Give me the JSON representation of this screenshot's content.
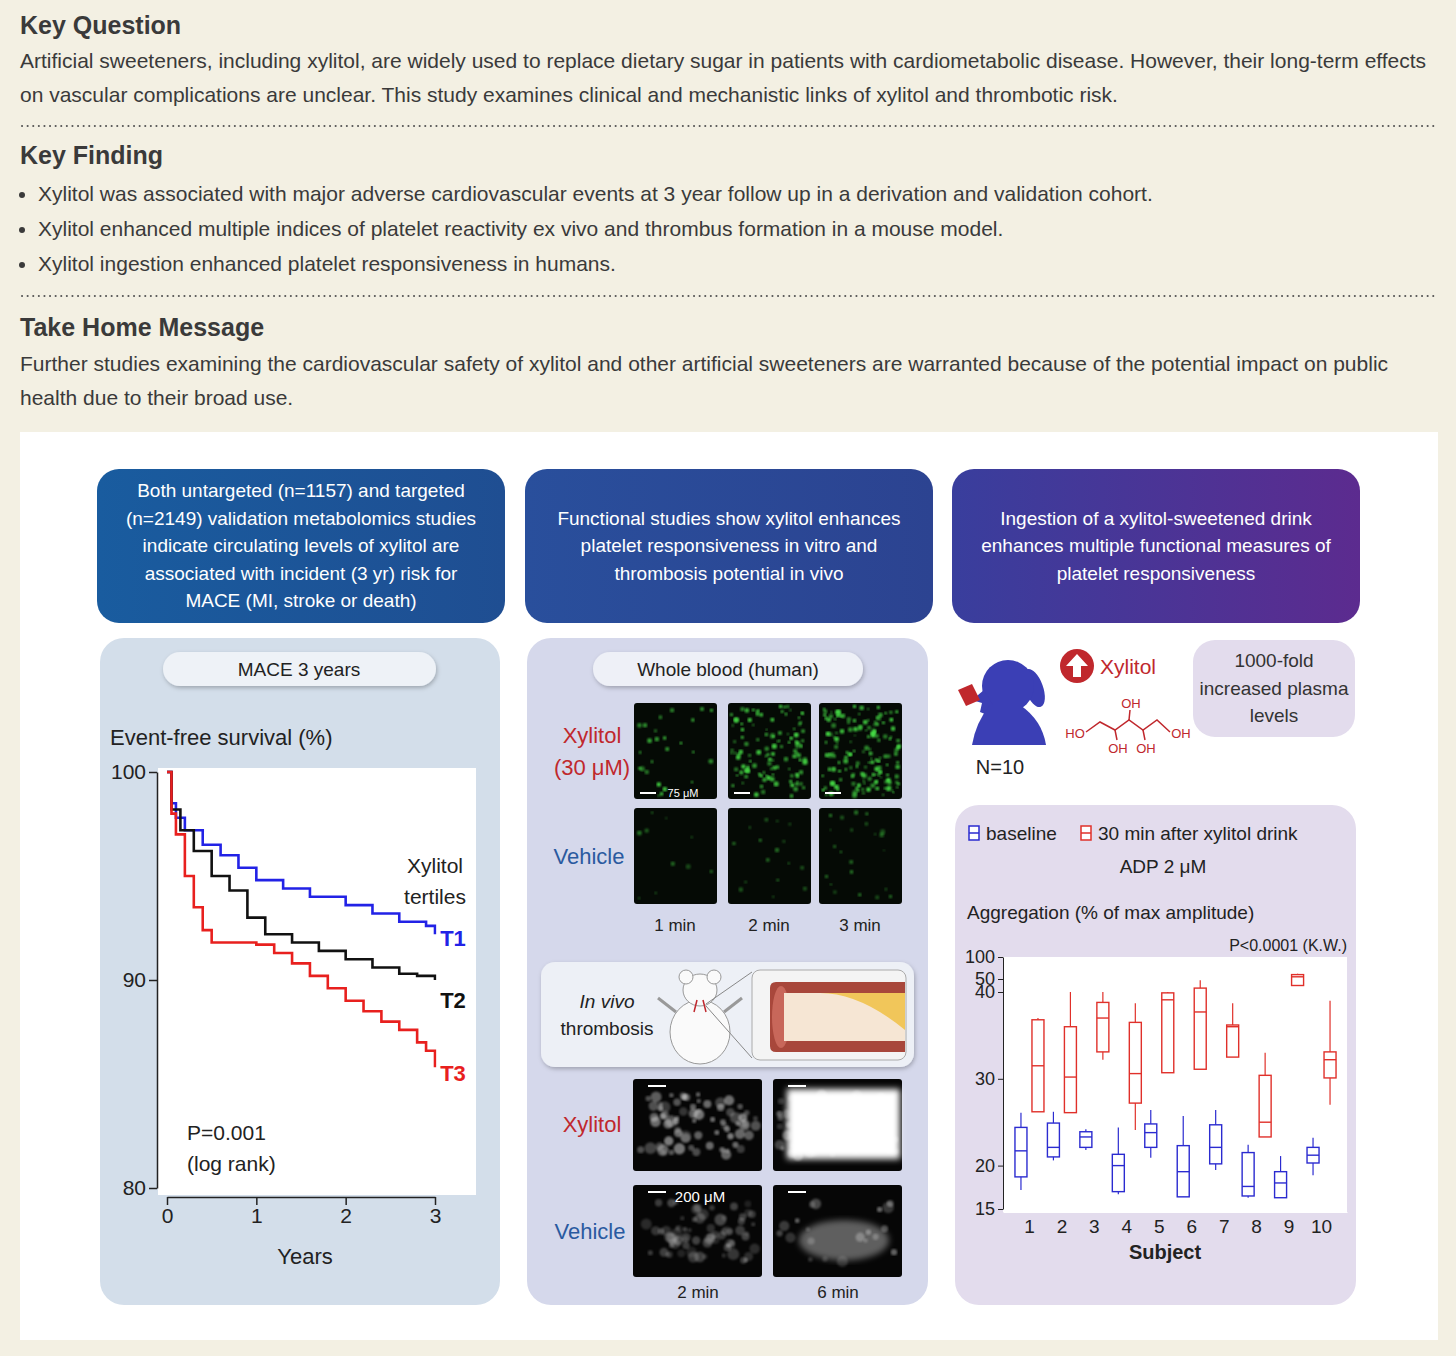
{
  "header": {
    "sections": [
      {
        "heading": "Key Question",
        "text": "Artificial sweeteners, including xylitol, are widely used to replace dietary sugar in patients with cardiometabolic disease. However, their long-term effects on vascular complications are unclear. This study examines clinical and mechanistic links of xylitol and thrombotic risk."
      },
      {
        "heading": "Key Finding",
        "items": [
          "Xylitol was associated with major adverse cardiovascular events at 3 year follow up in a derivation and validation cohort.",
          "Xylitol enhanced multiple indices of platelet reactivity ex vivo and thrombus formation in a mouse model.",
          "Xylitol ingestion enhanced platelet responsiveness in humans."
        ]
      },
      {
        "heading": "Take Home Message",
        "text": "Further studies examining the cardiovascular safety of xylitol and other artificial sweeteners are warranted because of the potential impact on public health due to their broad use."
      }
    ]
  },
  "panels": [
    {
      "header": "Both untargeted (n=1157) and targeted (n=2149) validation metabolomics studies indicate circulating levels of xylitol are associated with incident (3 yr) risk for MACE (MI, stroke or death)"
    },
    {
      "header": "Functional studies show xylitol enhances platelet responsiveness in vitro and thrombosis potential in vivo",
      "label": "Whole blood (human)",
      "whole_blood": {
        "rows": [
          [
            "Xylitol",
            "(30 μM)"
          ],
          [
            "Vehicle"
          ]
        ],
        "scale_bar": "75 μM",
        "times": [
          "1 min",
          "2 min",
          "3 min"
        ]
      },
      "in_vivo_label": [
        "In vivo",
        "thrombosis"
      ],
      "in_vivo": {
        "rows": [
          [
            "Xylitol"
          ],
          [
            "Vehicle"
          ]
        ],
        "scale_bar": "200 μM",
        "times": [
          "2 min",
          "6 min"
        ]
      }
    },
    {
      "header": "Ingestion of a xylitol-sweetened drink enhances multiple functional measures of platelet responsiveness",
      "marker": "Xylitol",
      "structure_labels": [
        "HO",
        "OH",
        "OH",
        "OH",
        "OH"
      ],
      "note": "1000-fold increased plasma levels",
      "n": "N=10"
    }
  ],
  "chart_data": [
    {
      "type": "line",
      "title": "MACE 3 years",
      "y_label": "Event-free survival (%)",
      "x_label": "Years",
      "xlim": [
        0,
        3
      ],
      "xticks": [
        0,
        1,
        2,
        3
      ],
      "ylim": [
        80,
        100
      ],
      "yticks": [
        80,
        90,
        100
      ],
      "line_style": "step",
      "legend_title": [
        "Xylitol",
        "tertiles"
      ],
      "annotations": [
        "P=0.001",
        "(log rank)"
      ],
      "series": [
        {
          "name": "T1",
          "color": "#2222e6",
          "x": [
            0,
            0.05,
            0.1,
            0.2,
            0.4,
            0.6,
            0.8,
            1.0,
            1.3,
            1.6,
            2.0,
            2.3,
            2.6,
            2.9,
            3.0
          ],
          "values": [
            100,
            98.5,
            97.8,
            97.2,
            96.5,
            96,
            95.4,
            94.8,
            94.4,
            94,
            93.6,
            93.2,
            92.8,
            92.6,
            92.2
          ]
        },
        {
          "name": "T2",
          "color": "#111111",
          "x": [
            0,
            0.05,
            0.15,
            0.3,
            0.5,
            0.7,
            0.9,
            1.1,
            1.4,
            1.7,
            2.0,
            2.3,
            2.6,
            2.8,
            3.0
          ],
          "values": [
            100,
            98.2,
            97.2,
            96.2,
            95,
            94.3,
            93,
            92.2,
            91.8,
            91.4,
            91,
            90.6,
            90.3,
            90.2,
            90
          ]
        },
        {
          "name": "T3",
          "color": "#e8201e",
          "x": [
            0,
            0.05,
            0.1,
            0.2,
            0.3,
            0.4,
            0.5,
            1.0,
            1.2,
            1.4,
            1.6,
            1.8,
            2.0,
            2.2,
            2.4,
            2.6,
            2.8,
            2.9,
            3.0
          ],
          "values": [
            100,
            98,
            97,
            95,
            93.5,
            92.4,
            91.8,
            91.7,
            91.3,
            90.8,
            90.2,
            89.6,
            89,
            88.5,
            88,
            87.6,
            87,
            86.6,
            85.8
          ]
        }
      ]
    },
    {
      "type": "box",
      "title": "ADP 2 μM",
      "y_label": "Aggregation (% of max amplitude)",
      "x_label": "Subject",
      "annotation": "P<0.0001 (K.W.)",
      "legend": "top",
      "categories": [
        "1",
        "2",
        "3",
        "4",
        "5",
        "6",
        "7",
        "8",
        "9",
        "10"
      ],
      "ylim": [
        15,
        100
      ],
      "yticks": [
        15,
        20,
        30,
        40,
        50,
        100
      ],
      "series": [
        {
          "name": "baseline",
          "color": "#2b2bd0",
          "min": [
            17.2,
            20.6,
            21.8,
            16.7,
            20.9,
            16.4,
            19.5,
            16.3,
            16.3,
            18.9
          ],
          "q1": [
            18.7,
            21.0,
            22.1,
            17.0,
            22.1,
            16.4,
            20.2,
            16.5,
            16.3,
            20.3
          ],
          "median": [
            21.7,
            22.1,
            23.3,
            20.0,
            23.8,
            19.3,
            22.1,
            17.6,
            18.0,
            21.2
          ],
          "q3": [
            24.4,
            24.9,
            23.9,
            21.3,
            24.8,
            22.3,
            24.7,
            21.5,
            19.3,
            22.1
          ],
          "max": [
            26.1,
            26.2,
            24.2,
            24.4,
            26.4,
            25.7,
            26.4,
            22.4,
            21.1,
            23.2
          ]
        },
        {
          "name": "30 min after xylitol drink",
          "color": "#e0302a",
          "min": [
            26.2,
            26.1,
            32.2,
            24.1,
            30.7,
            31.1,
            32.5,
            23.3,
            45,
            27
          ],
          "q1": [
            26.2,
            26.1,
            33.1,
            27.2,
            30.7,
            31.1,
            32.5,
            23.3,
            45,
            30.1
          ],
          "median": [
            31.5,
            30.2,
            37.0,
            30.6,
            39.1,
            37.7,
            36.0,
            25.0,
            55,
            32.2
          ],
          "q3": [
            36.8,
            36.0,
            38.8,
            36.5,
            39.9,
            43,
            36.2,
            30.4,
            60,
            33.1
          ],
          "max": [
            37,
            40,
            40,
            38.7,
            40,
            49,
            38.7,
            33,
            62,
            39
          ]
        }
      ]
    }
  ]
}
